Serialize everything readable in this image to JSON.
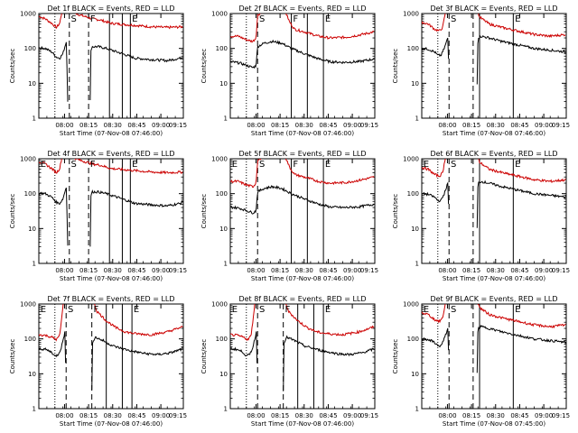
{
  "chart_data": [
    {
      "type": "line",
      "title": "Det 1f BLACK = Events, RED = LLD",
      "xlabel": "Start Time (07-Nov-08 07:46:00)",
      "ylabel": "Counts/sec",
      "yscale": "log",
      "ylim": [
        1,
        1000
      ],
      "xlim": [
        0,
        90
      ],
      "yticks": [
        "1",
        "10",
        "100",
        "1000"
      ],
      "xticks": [
        {
          "x": 16,
          "label": "08:00"
        },
        {
          "x": 31,
          "label": "08:15"
        },
        {
          "x": 46,
          "label": "08:30"
        },
        {
          "x": 61,
          "label": "08:45"
        },
        {
          "x": 76,
          "label": "09:00"
        },
        {
          "x": 91,
          "label": "09:15"
        }
      ],
      "grid": false,
      "annotations": [
        "S",
        "F",
        "E"
      ],
      "group": "A",
      "series": [
        {
          "name": "Events",
          "color": "#000000"
        },
        {
          "name": "LLD",
          "color": "#cc0000"
        }
      ]
    },
    {
      "type": "line",
      "title": "Det 2f BLACK = Events, RED = LLD",
      "xlabel": "Start Time (07-Nov-08 07:46:00)",
      "ylabel": "Counts/sec",
      "yscale": "log",
      "ylim": [
        1,
        1000
      ],
      "xlim": [
        0,
        90
      ],
      "yticks": [
        "1",
        "10",
        "100",
        "1000"
      ],
      "xticks": [
        {
          "x": 16,
          "label": "08:00"
        },
        {
          "x": 31,
          "label": "08:15"
        },
        {
          "x": 46,
          "label": "08:30"
        },
        {
          "x": 61,
          "label": "08:45"
        },
        {
          "x": 76,
          "label": "09:00"
        },
        {
          "x": 91,
          "label": "09:15"
        }
      ],
      "grid": false,
      "annotations": [
        "S",
        "F",
        "E"
      ],
      "group": "B",
      "series": [
        {
          "name": "Events",
          "color": "#000000"
        },
        {
          "name": "LLD",
          "color": "#cc0000"
        }
      ]
    },
    {
      "type": "line",
      "title": "Det 3f BLACK = Events, RED = LLD",
      "xlabel": "Start Time (07-Nov-08 07:46:00)",
      "ylabel": "Counts/sec",
      "yscale": "log",
      "ylim": [
        1,
        1000
      ],
      "xlim": [
        0,
        90
      ],
      "yticks": [
        "1",
        "10",
        "100",
        "1000"
      ],
      "xticks": [
        {
          "x": 16,
          "label": "08:00"
        },
        {
          "x": 31,
          "label": "08:15"
        },
        {
          "x": 46,
          "label": "08:30"
        },
        {
          "x": 61,
          "label": "08:45"
        },
        {
          "x": 76,
          "label": "09:00"
        },
        {
          "x": 91,
          "label": "09:15"
        }
      ],
      "grid": false,
      "annotations": [
        "S",
        "E"
      ],
      "group": "C",
      "series": [
        {
          "name": "Events",
          "color": "#000000"
        },
        {
          "name": "LLD",
          "color": "#cc0000"
        }
      ]
    },
    {
      "type": "line",
      "title": "Det 4f BLACK = Events, RED = LLD",
      "xlabel": "Start Time (07-Nov-08 07:46:00)",
      "ylabel": "Counts/sec",
      "yscale": "log",
      "ylim": [
        1,
        1000
      ],
      "xlim": [
        0,
        90
      ],
      "yticks": [
        "1",
        "10",
        "100",
        "1000"
      ],
      "xticks": [
        {
          "x": 16,
          "label": "08:00"
        },
        {
          "x": 31,
          "label": "08:15"
        },
        {
          "x": 46,
          "label": "08:30"
        },
        {
          "x": 61,
          "label": "08:45"
        },
        {
          "x": 76,
          "label": "09:00"
        },
        {
          "x": 91,
          "label": "09:15"
        }
      ],
      "grid": false,
      "annotations": [
        "E",
        "S",
        "F",
        "E"
      ],
      "group": "A",
      "series": [
        {
          "name": "Events",
          "color": "#000000"
        },
        {
          "name": "LLD",
          "color": "#cc0000"
        }
      ]
    },
    {
      "type": "line",
      "title": "Det 5f BLACK = Events, RED = LLD",
      "xlabel": "Start Time (07-Nov-08 07:46:00)",
      "ylabel": "Counts/sec",
      "yscale": "log",
      "ylim": [
        1,
        1000
      ],
      "xlim": [
        0,
        90
      ],
      "yticks": [
        "1",
        "10",
        "100",
        "1000"
      ],
      "xticks": [
        {
          "x": 16,
          "label": "08:00"
        },
        {
          "x": 31,
          "label": "08:15"
        },
        {
          "x": 46,
          "label": "08:30"
        },
        {
          "x": 61,
          "label": "08:45"
        },
        {
          "x": 76,
          "label": "09:00"
        },
        {
          "x": 91,
          "label": "09:15"
        }
      ],
      "grid": false,
      "annotations": [
        "E",
        "S",
        "F",
        "E"
      ],
      "group": "B",
      "series": [
        {
          "name": "Events",
          "color": "#000000"
        },
        {
          "name": "LLD",
          "color": "#cc0000"
        }
      ]
    },
    {
      "type": "line",
      "title": "Det 6f BLACK = Events, RED = LLD",
      "xlabel": "Start Time (07-Nov-08 07:46:00)",
      "ylabel": "Counts/sec",
      "yscale": "log",
      "ylim": [
        1,
        1000
      ],
      "xlim": [
        0,
        90
      ],
      "yticks": [
        "1",
        "10",
        "100",
        "1000"
      ],
      "xticks": [
        {
          "x": 16,
          "label": "08:00"
        },
        {
          "x": 31,
          "label": "08:15"
        },
        {
          "x": 46,
          "label": "08:30"
        },
        {
          "x": 61,
          "label": "08:45"
        },
        {
          "x": 76,
          "label": "09:00"
        },
        {
          "x": 91,
          "label": "09:15"
        }
      ],
      "grid": false,
      "annotations": [
        "E",
        "S",
        "E"
      ],
      "group": "C",
      "series": [
        {
          "name": "Events",
          "color": "#000000"
        },
        {
          "name": "LLD",
          "color": "#cc0000"
        }
      ]
    },
    {
      "type": "line",
      "title": "Det 7f BLACK = Events, RED = LLD",
      "xlabel": "Start Time (07-Nov-08 07:46:00)",
      "ylabel": "Counts/sec",
      "yscale": "log",
      "ylim": [
        1,
        1000
      ],
      "xlim": [
        0,
        90
      ],
      "yticks": [
        "1",
        "10",
        "100",
        "1000"
      ],
      "xticks": [
        {
          "x": 16,
          "label": "08:00"
        },
        {
          "x": 31,
          "label": "08:15"
        },
        {
          "x": 46,
          "label": "08:30"
        },
        {
          "x": 61,
          "label": "08:45"
        },
        {
          "x": 76,
          "label": "09:00"
        },
        {
          "x": 91,
          "label": "09:15"
        }
      ],
      "grid": false,
      "annotations": [
        "E",
        "S",
        "F",
        "E"
      ],
      "group": "D",
      "series": [
        {
          "name": "Events",
          "color": "#000000"
        },
        {
          "name": "LLD",
          "color": "#cc0000"
        }
      ]
    },
    {
      "type": "line",
      "title": "Det 8f BLACK = Events, RED = LLD",
      "xlabel": "Start Time (07-Nov-08 07:46:00)",
      "ylabel": "Counts/sec",
      "yscale": "log",
      "ylim": [
        1,
        1000
      ],
      "xlim": [
        0,
        90
      ],
      "yticks": [
        "1",
        "10",
        "100",
        "1000"
      ],
      "xticks": [
        {
          "x": 16,
          "label": "08:00"
        },
        {
          "x": 31,
          "label": "08:15"
        },
        {
          "x": 46,
          "label": "08:30"
        },
        {
          "x": 61,
          "label": "08:45"
        },
        {
          "x": 76,
          "label": "09:00"
        },
        {
          "x": 91,
          "label": "09:15"
        }
      ],
      "grid": false,
      "annotations": [
        "E",
        "S",
        "F",
        "E"
      ],
      "group": "D",
      "series": [
        {
          "name": "Events",
          "color": "#000000"
        },
        {
          "name": "LLD",
          "color": "#cc0000"
        }
      ]
    },
    {
      "type": "line",
      "title": "Det 9f BLACK = Events, RED = LLD",
      "xlabel": "Start Time (07-Nov-08 07:45:00)",
      "ylabel": "Counts/sec",
      "yscale": "log",
      "ylim": [
        1,
        1000
      ],
      "xlim": [
        0,
        90
      ],
      "yticks": [
        "1",
        "10",
        "100",
        "1000"
      ],
      "xticks": [
        {
          "x": 16,
          "label": "08:00"
        },
        {
          "x": 31,
          "label": "08:15"
        },
        {
          "x": 46,
          "label": "08:30"
        },
        {
          "x": 61,
          "label": "08:45"
        },
        {
          "x": 76,
          "label": "09:00"
        },
        {
          "x": 91,
          "label": "09:15"
        }
      ],
      "grid": false,
      "annotations": [
        "E",
        "S",
        "E"
      ],
      "group": "C",
      "series": [
        {
          "name": "Events",
          "color": "#000000"
        },
        {
          "name": "LLD",
          "color": "#cc0000"
        }
      ]
    }
  ]
}
